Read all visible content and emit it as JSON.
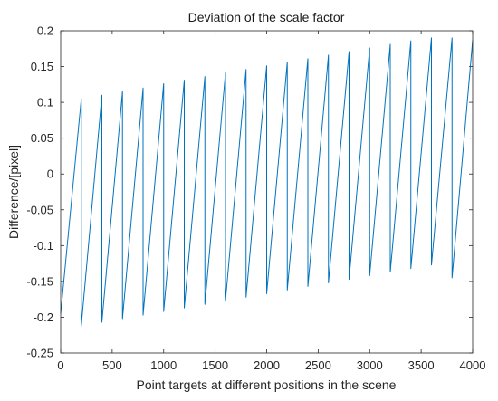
{
  "chart_data": {
    "type": "line",
    "title": "Deviation of the scale factor",
    "xlabel": "Point targets at different positions in the scene",
    "ylabel": "Difference/[pixel]",
    "xlim": [
      0,
      4000
    ],
    "ylim": [
      -0.25,
      0.2
    ],
    "xticks": [
      0,
      500,
      1000,
      1500,
      2000,
      2500,
      3000,
      3500,
      4000
    ],
    "yticks": [
      -0.25,
      -0.2,
      -0.15,
      -0.1,
      -0.05,
      0,
      0.05,
      0.1,
      0.15,
      0.2
    ],
    "grid": false,
    "line_color": "#0072BD",
    "series": [
      {
        "x": [
          0,
          200,
          200,
          400,
          400,
          600,
          600,
          800,
          800,
          1000,
          1000,
          1200,
          1200,
          1400,
          1400,
          1600,
          1600,
          1800,
          1800,
          2000,
          2000,
          2200,
          2200,
          2400,
          2400,
          2600,
          2600,
          2800,
          2800,
          3000,
          3000,
          3200,
          3200,
          3400,
          3400,
          3600,
          3600,
          3800,
          3800,
          4000
        ],
        "y": [
          -0.195,
          0.105,
          -0.212,
          0.11,
          -0.207,
          0.115,
          -0.202,
          0.12,
          -0.197,
          0.126,
          -0.192,
          0.131,
          -0.187,
          0.136,
          -0.182,
          0.141,
          -0.177,
          0.146,
          -0.172,
          0.151,
          -0.167,
          0.156,
          -0.162,
          0.161,
          -0.157,
          0.166,
          -0.152,
          0.171,
          -0.147,
          0.176,
          -0.142,
          0.181,
          -0.137,
          0.186,
          -0.132,
          0.19,
          -0.127,
          0.19,
          -0.145,
          0.187
        ]
      }
    ]
  }
}
